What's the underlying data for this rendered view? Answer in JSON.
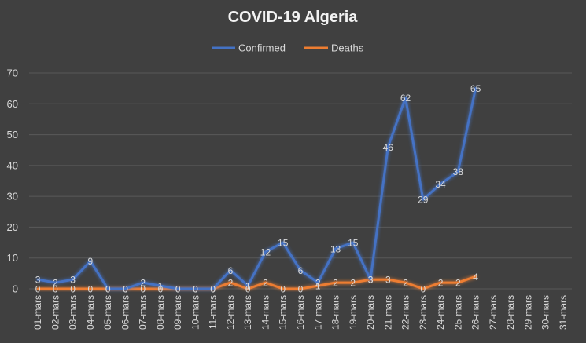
{
  "chart_data": {
    "type": "line",
    "title": "COVID-19 Algeria",
    "xlabel": "",
    "ylabel": "",
    "ylim": [
      0,
      70
    ],
    "yticks": [
      0,
      10,
      20,
      30,
      40,
      50,
      60,
      70
    ],
    "grid": true,
    "legend_position": "top",
    "categories": [
      "01-mars",
      "02-mars",
      "03-mars",
      "04-mars",
      "05-mars",
      "06-mars",
      "07-mars",
      "08-mars",
      "09-mars",
      "10-mars",
      "11-mars",
      "12-mars",
      "13-mars",
      "14-mars",
      "15-mars",
      "16-mars",
      "17-mars",
      "18-mars",
      "19-mars",
      "20-mars",
      "21-mars",
      "22-mars",
      "23-mars",
      "24-mars",
      "25-mars",
      "26-mars",
      "27-mars",
      "28-mars",
      "29-mars",
      "30-mars",
      "31-mars"
    ],
    "series": [
      {
        "name": "Confirmed",
        "color": "#4472c4",
        "values": [
          3,
          2,
          3,
          9,
          0,
          0,
          2,
          1,
          0,
          0,
          0,
          6,
          1,
          12,
          15,
          6,
          2,
          13,
          15,
          3,
          46,
          62,
          29,
          34,
          38,
          65,
          null,
          null,
          null,
          null,
          null
        ]
      },
      {
        "name": "Deaths",
        "color": "#ed7d31",
        "values": [
          0,
          0,
          0,
          0,
          0,
          0,
          0,
          0,
          0,
          0,
          0,
          2,
          0,
          2,
          0,
          0,
          1,
          2,
          2,
          3,
          3,
          2,
          0,
          2,
          2,
          4,
          null,
          null,
          null,
          null,
          null
        ]
      }
    ]
  }
}
